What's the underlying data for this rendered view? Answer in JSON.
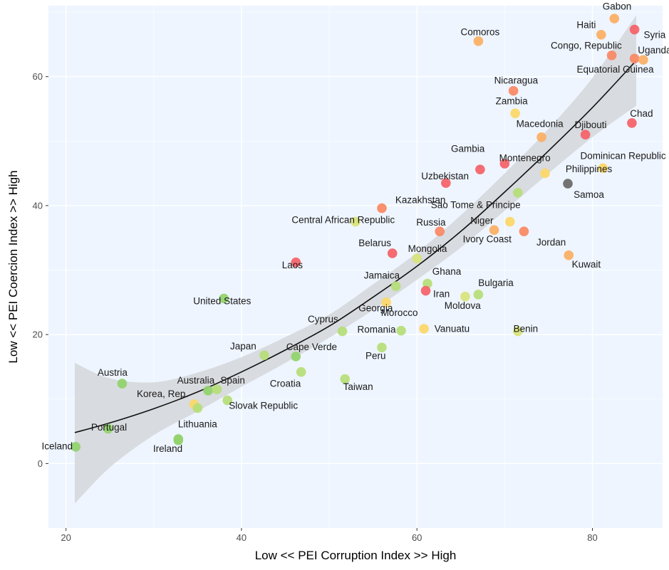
{
  "chart_data": {
    "type": "scatter",
    "xlabel": "Low << PEI Corruption Index  >>  High",
    "ylabel": "Low << PEI Coercion Index >>  High",
    "xlim": [
      18,
      88
    ],
    "ylim": [
      -10,
      71
    ],
    "x_ticks": [
      20,
      40,
      60,
      80
    ],
    "y_ticks": [
      0,
      20,
      40,
      60
    ],
    "grid": true,
    "background": "#eef5ff",
    "colors": {
      "red": "#f4646a",
      "salmon": "#f98a66",
      "orange": "#fbb066",
      "yellow": "#fbd86a",
      "lime": "#d8e47c",
      "lightgreen": "#b6de7a",
      "green": "#92d36e",
      "gray": "#6b6b6b",
      "fit_line": "#111111",
      "ribbon": "#d3d6d9"
    },
    "points": [
      {
        "name": "Gabon",
        "x": 82.5,
        "y": 69.0,
        "color": "orange"
      },
      {
        "name": "Haiti",
        "x": 81.0,
        "y": 66.5,
        "color": "orange"
      },
      {
        "name": "Syria",
        "x": 84.8,
        "y": 67.3,
        "color": "red"
      },
      {
        "name": "Comoros",
        "x": 67.0,
        "y": 65.5,
        "color": "orange"
      },
      {
        "name": "Congo, Republic",
        "x": 82.2,
        "y": 63.3,
        "color": "salmon"
      },
      {
        "name": "Uganda",
        "x": 84.8,
        "y": 62.8,
        "color": "salmon"
      },
      {
        "name": "Equatorial Guinea",
        "x": 85.8,
        "y": 62.6,
        "color": "orange"
      },
      {
        "name": "Nicaragua",
        "x": 71.0,
        "y": 57.8,
        "color": "salmon"
      },
      {
        "name": "Zambia",
        "x": 71.2,
        "y": 54.3,
        "color": "yellow"
      },
      {
        "name": "Chad",
        "x": 84.5,
        "y": 52.8,
        "color": "red"
      },
      {
        "name": "Djibouti",
        "x": 79.2,
        "y": 51.0,
        "color": "red"
      },
      {
        "name": "Macedonia",
        "x": 74.2,
        "y": 50.6,
        "color": "orange"
      },
      {
        "name": "Gambia",
        "x": 67.2,
        "y": 45.6,
        "color": "red"
      },
      {
        "name": "Montenegro",
        "x": 70.0,
        "y": 46.5,
        "color": "red"
      },
      {
        "name": "Dominican Republic",
        "x": 81.2,
        "y": 45.8,
        "color": "yellow"
      },
      {
        "name": "Philippines",
        "x": 74.6,
        "y": 45.0,
        "color": "yellow"
      },
      {
        "name": "Samoa",
        "x": 77.2,
        "y": 43.4,
        "color": "gray"
      },
      {
        "name": "Uzbekistan",
        "x": 63.3,
        "y": 43.5,
        "color": "red"
      },
      {
        "name": "Sao Tome & Principe",
        "x": 71.5,
        "y": 42.0,
        "color": "lightgreen"
      },
      {
        "name": "Kazakhstan",
        "x": 56.0,
        "y": 39.6,
        "color": "salmon"
      },
      {
        "name": "Central African Republic",
        "x": 53.0,
        "y": 37.5,
        "color": "lime"
      },
      {
        "name": "Niger",
        "x": 70.6,
        "y": 37.5,
        "color": "yellow"
      },
      {
        "name": "Russia",
        "x": 62.6,
        "y": 36.0,
        "color": "salmon"
      },
      {
        "name": "Ivory Coast",
        "x": 68.8,
        "y": 36.2,
        "color": "orange"
      },
      {
        "name": "Jordan",
        "x": 72.2,
        "y": 36.0,
        "color": "salmon"
      },
      {
        "name": "Belarus",
        "x": 57.2,
        "y": 32.6,
        "color": "red"
      },
      {
        "name": "Mongolia",
        "x": 60.0,
        "y": 31.8,
        "color": "lime"
      },
      {
        "name": "Kuwait",
        "x": 77.3,
        "y": 32.3,
        "color": "orange"
      },
      {
        "name": "Laos",
        "x": 46.2,
        "y": 31.2,
        "color": "red"
      },
      {
        "name": "Ghana",
        "x": 61.2,
        "y": 27.9,
        "color": "lightgreen"
      },
      {
        "name": "Jamaica",
        "x": 57.6,
        "y": 27.5,
        "color": "lightgreen"
      },
      {
        "name": "Iran",
        "x": 61.0,
        "y": 26.8,
        "color": "red"
      },
      {
        "name": "Bulgaria",
        "x": 67.0,
        "y": 26.2,
        "color": "lightgreen"
      },
      {
        "name": "Moldova",
        "x": 65.5,
        "y": 25.9,
        "color": "lime"
      },
      {
        "name": "United States",
        "x": 38.0,
        "y": 25.6,
        "color": "green"
      },
      {
        "name": "Georgia",
        "x": 56.5,
        "y": 25.0,
        "color": "yellow"
      },
      {
        "name": "Cyprus",
        "x": 51.5,
        "y": 20.5,
        "color": "lightgreen"
      },
      {
        "name": "Romania",
        "x": 58.2,
        "y": 20.6,
        "color": "lightgreen"
      },
      {
        "name": "Vanuatu",
        "x": 60.8,
        "y": 20.9,
        "color": "yellow"
      },
      {
        "name": "Benin",
        "x": 71.5,
        "y": 20.5,
        "color": "lime"
      },
      {
        "name": "Peru",
        "x": 56.0,
        "y": 18.0,
        "color": "lightgreen"
      },
      {
        "name": "Japan",
        "x": 42.6,
        "y": 16.8,
        "color": "lightgreen"
      },
      {
        "name": "Cape Verde",
        "x": 46.2,
        "y": 16.6,
        "color": "green"
      },
      {
        "name": "Croatia",
        "x": 46.8,
        "y": 14.2,
        "color": "lightgreen"
      },
      {
        "name": "Taiwan",
        "x": 51.8,
        "y": 13.1,
        "color": "lightgreen"
      },
      {
        "name": "Austria",
        "x": 26.4,
        "y": 12.4,
        "color": "green"
      },
      {
        "name": "Australia",
        "x": 36.2,
        "y": 11.3,
        "color": "green"
      },
      {
        "name": "Spain",
        "x": 37.2,
        "y": 11.5,
        "color": "lightgreen"
      },
      {
        "name": "Slovak Republic",
        "x": 38.4,
        "y": 9.8,
        "color": "lightgreen"
      },
      {
        "name": "Korea, Rep.",
        "x": 34.6,
        "y": 9.2,
        "color": "yellow"
      },
      {
        "name": "Korea, Rep. (2)",
        "x": 35.0,
        "y": 8.6,
        "color": "lightgreen"
      },
      {
        "name": "Portugal",
        "x": 24.8,
        "y": 5.4,
        "color": "green"
      },
      {
        "name": "Lithuania",
        "x": 32.8,
        "y": 3.8,
        "color": "green"
      },
      {
        "name": "Ireland",
        "x": 32.8,
        "y": 3.6,
        "color": "green"
      },
      {
        "name": "Iceland",
        "x": 21.1,
        "y": 2.6,
        "color": "green"
      }
    ],
    "labels": [
      {
        "text": "Gabon",
        "x": 82.8,
        "y": 70.4
      },
      {
        "text": "Haiti",
        "x": 79.3,
        "y": 67.5
      },
      {
        "text": "Syria",
        "x": 87.1,
        "y": 66.0
      },
      {
        "text": "Comoros",
        "x": 67.2,
        "y": 66.4
      },
      {
        "text": "Congo, Republic",
        "x": 79.3,
        "y": 64.3
      },
      {
        "text": "Uganda",
        "x": 87.1,
        "y": 63.6
      },
      {
        "text": "Equatorial Guinea",
        "x": 82.6,
        "y": 60.6
      },
      {
        "text": "Nicaragua",
        "x": 71.3,
        "y": 58.9
      },
      {
        "text": "Zambia",
        "x": 70.8,
        "y": 55.7
      },
      {
        "text": "Chad",
        "x": 85.6,
        "y": 53.8
      },
      {
        "text": "Macedonia",
        "x": 74.0,
        "y": 52.2
      },
      {
        "text": "Djibouti",
        "x": 79.8,
        "y": 52.0
      },
      {
        "text": "Gambia",
        "x": 65.8,
        "y": 48.3
      },
      {
        "text": "Montenegro",
        "x": 72.3,
        "y": 46.9
      },
      {
        "text": "Dominican Republic",
        "x": 83.5,
        "y": 47.2
      },
      {
        "text": "Philippines",
        "x": 79.6,
        "y": 45.2
      },
      {
        "text": "Samoa",
        "x": 79.6,
        "y": 41.2
      },
      {
        "text": "Uzbekistan",
        "x": 63.2,
        "y": 44.1
      },
      {
        "text": "Kazakhstan",
        "x": 60.4,
        "y": 40.4
      },
      {
        "text": "Sao Tome & Principe",
        "x": 66.7,
        "y": 39.6
      },
      {
        "text": "Central African Republic",
        "x": 51.6,
        "y": 37.3
      },
      {
        "text": "Niger",
        "x": 67.4,
        "y": 37.2
      },
      {
        "text": "Russia",
        "x": 61.6,
        "y": 36.9
      },
      {
        "text": "Ivory Coast",
        "x": 68.0,
        "y": 34.3
      },
      {
        "text": "Jordan",
        "x": 75.3,
        "y": 33.8
      },
      {
        "text": "Belarus",
        "x": 55.2,
        "y": 33.7
      },
      {
        "text": "Mongolia",
        "x": 61.2,
        "y": 32.8
      },
      {
        "text": "Kuwait",
        "x": 79.3,
        "y": 30.4
      },
      {
        "text": "Laos",
        "x": 45.8,
        "y": 30.3
      },
      {
        "text": "Ghana",
        "x": 63.4,
        "y": 29.3
      },
      {
        "text": "Jamaica",
        "x": 56.0,
        "y": 28.7
      },
      {
        "text": "Bulgaria",
        "x": 69.0,
        "y": 27.5
      },
      {
        "text": "Iran",
        "x": 62.8,
        "y": 25.8
      },
      {
        "text": "United States",
        "x": 37.8,
        "y": 24.7
      },
      {
        "text": "Georgia",
        "x": 55.3,
        "y": 23.6
      },
      {
        "text": "Moldova",
        "x": 65.2,
        "y": 24.0
      },
      {
        "text": "Morocco",
        "x": 58.0,
        "y": 22.9
      },
      {
        "text": "Cyprus",
        "x": 49.3,
        "y": 21.9
      },
      {
        "text": "Romania",
        "x": 55.4,
        "y": 20.3
      },
      {
        "text": "Vanuatu",
        "x": 64.0,
        "y": 20.4
      },
      {
        "text": "Benin",
        "x": 72.4,
        "y": 20.4
      },
      {
        "text": "Cape Verde",
        "x": 48.0,
        "y": 17.6
      },
      {
        "text": "Japan",
        "x": 40.2,
        "y": 17.7
      },
      {
        "text": "Peru",
        "x": 55.3,
        "y": 16.2
      },
      {
        "text": "Croatia",
        "x": 45.0,
        "y": 11.9
      },
      {
        "text": "Taiwan",
        "x": 53.3,
        "y": 11.4
      },
      {
        "text": "Austria",
        "x": 25.3,
        "y": 13.6
      },
      {
        "text": "Australia",
        "x": 34.8,
        "y": 12.4
      },
      {
        "text": "Spain",
        "x": 39.0,
        "y": 12.4
      },
      {
        "text": "Korea, Rep.",
        "x": 31.0,
        "y": 10.3
      },
      {
        "text": "Slovak Republic",
        "x": 42.5,
        "y": 8.5
      },
      {
        "text": "Portugal",
        "x": 24.9,
        "y": 5.1
      },
      {
        "text": "Lithuania",
        "x": 35.0,
        "y": 5.6
      },
      {
        "text": "Ireland",
        "x": 31.6,
        "y": 1.8
      },
      {
        "text": "Iceland",
        "x": 19.0,
        "y": 2.2
      }
    ],
    "fit_line": [
      {
        "x": 21,
        "y": 4.8
      },
      {
        "x": 25,
        "y": 6.3
      },
      {
        "x": 30,
        "y": 8.5
      },
      {
        "x": 35,
        "y": 11.1
      },
      {
        "x": 40,
        "y": 14.2
      },
      {
        "x": 45,
        "y": 17.6
      },
      {
        "x": 50,
        "y": 21.3
      },
      {
        "x": 55,
        "y": 25.8
      },
      {
        "x": 60,
        "y": 30.6
      },
      {
        "x": 65,
        "y": 36.0
      },
      {
        "x": 70,
        "y": 42.1
      },
      {
        "x": 75,
        "y": 48.5
      },
      {
        "x": 80,
        "y": 55.2
      },
      {
        "x": 85,
        "y": 62.5
      }
    ],
    "ribbon_upper": [
      {
        "x": 21,
        "y": 15.6
      },
      {
        "x": 25,
        "y": 13.2
      },
      {
        "x": 30,
        "y": 12.6
      },
      {
        "x": 35,
        "y": 14.1
      },
      {
        "x": 40,
        "y": 16.5
      },
      {
        "x": 45,
        "y": 19.6
      },
      {
        "x": 50,
        "y": 23.1
      },
      {
        "x": 55,
        "y": 27.8
      },
      {
        "x": 60,
        "y": 32.7
      },
      {
        "x": 65,
        "y": 38.5
      },
      {
        "x": 70,
        "y": 45.0
      },
      {
        "x": 75,
        "y": 51.9
      },
      {
        "x": 80,
        "y": 59.8
      },
      {
        "x": 85,
        "y": 69.5
      }
    ],
    "ribbon_lower": [
      {
        "x": 21,
        "y": -6.2
      },
      {
        "x": 25,
        "y": -0.6
      },
      {
        "x": 30,
        "y": 4.4
      },
      {
        "x": 35,
        "y": 8.1
      },
      {
        "x": 40,
        "y": 11.9
      },
      {
        "x": 45,
        "y": 15.6
      },
      {
        "x": 50,
        "y": 19.5
      },
      {
        "x": 55,
        "y": 23.8
      },
      {
        "x": 60,
        "y": 28.5
      },
      {
        "x": 65,
        "y": 33.5
      },
      {
        "x": 70,
        "y": 39.2
      },
      {
        "x": 75,
        "y": 45.0
      },
      {
        "x": 80,
        "y": 50.6
      },
      {
        "x": 85,
        "y": 55.5
      }
    ]
  }
}
